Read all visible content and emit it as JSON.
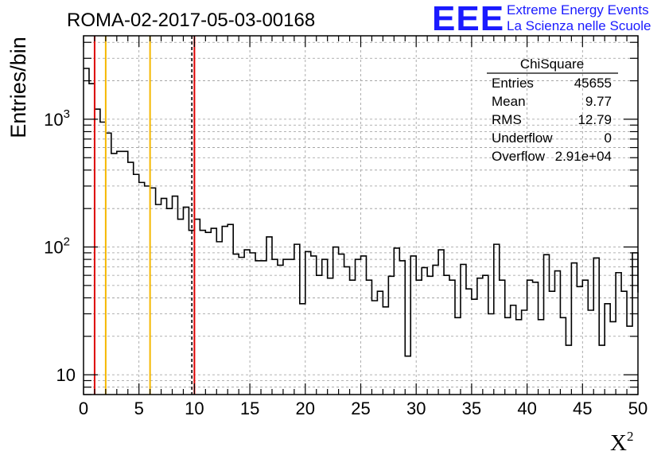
{
  "header": {
    "run_title": "ROMA-02-2017-05-03-00168",
    "logo_text": "EEE",
    "logo_line1": "Extreme Energy Events",
    "logo_line2": "La Scienza nelle Scuole",
    "logo_color": "#1a1aff"
  },
  "stats": {
    "title": "ChiSquare",
    "rows": [
      {
        "label": "Entries",
        "value": "45655"
      },
      {
        "label": "Mean",
        "value": "9.77"
      },
      {
        "label": "RMS",
        "value": "12.79"
      },
      {
        "label": "Underflow",
        "value": "0"
      },
      {
        "label": "Overflow",
        "value": "2.91e+04"
      }
    ]
  },
  "chart_data": {
    "type": "bar",
    "style": "step-histogram",
    "title": "ROMA-02-2017-05-03-00168",
    "xlabel": "X",
    "xlabel_superscript": "2",
    "ylabel": "Entries/bin",
    "xlim": [
      0,
      50
    ],
    "ylim": [
      7,
      4500
    ],
    "y_scale": "log",
    "grid": true,
    "bin_width": 0.5,
    "x_ticks": [
      0,
      5,
      10,
      15,
      20,
      25,
      30,
      35,
      40,
      45,
      50
    ],
    "x_tick_labels": [
      "0",
      "5",
      "10",
      "15",
      "20",
      "25",
      "30",
      "35",
      "40",
      "45",
      "50"
    ],
    "y_ticks": [
      {
        "value": 10,
        "base": "10",
        "exp": ""
      },
      {
        "value": 100,
        "base": "10",
        "exp": "2"
      },
      {
        "value": 1000,
        "base": "10",
        "exp": "3"
      }
    ],
    "values": [
      2500,
      1900,
      1200,
      950,
      780,
      540,
      560,
      560,
      460,
      370,
      320,
      300,
      290,
      215,
      240,
      200,
      250,
      165,
      205,
      135,
      165,
      135,
      130,
      140,
      110,
      145,
      150,
      88,
      83,
      95,
      90,
      78,
      78,
      120,
      80,
      72,
      80,
      80,
      105,
      36,
      92,
      85,
      60,
      80,
      57,
      100,
      88,
      70,
      55,
      80,
      85,
      55,
      38,
      45,
      34,
      59,
      98,
      78,
      14,
      85,
      55,
      69,
      59,
      72,
      95,
      60,
      55,
      28,
      73,
      47,
      39,
      57,
      60,
      30,
      105,
      55,
      28,
      35,
      27,
      32,
      55,
      53,
      27,
      87,
      45,
      65,
      28,
      17,
      75,
      49,
      55,
      32,
      82,
      17,
      36,
      26,
      63,
      45,
      24,
      90,
      44
    ],
    "vertical_lines": [
      {
        "x": 1,
        "color": "#dd0000",
        "style": "solid"
      },
      {
        "x": 2,
        "color": "#f5b800",
        "style": "solid"
      },
      {
        "x": 6,
        "color": "#f5b800",
        "style": "solid"
      },
      {
        "x": 9.77,
        "color": "#000000",
        "style": "dashed"
      },
      {
        "x": 10,
        "color": "#dd0000",
        "style": "solid"
      }
    ]
  }
}
